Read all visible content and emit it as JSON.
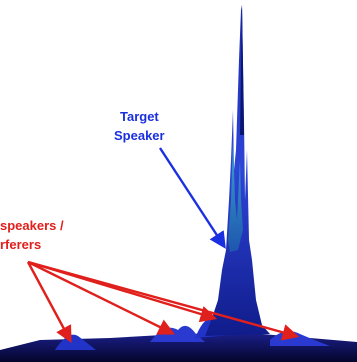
{
  "chart_data": {
    "type": "surface-3d",
    "annotations": {
      "target": {
        "lines": [
          "Target",
          "Speaker"
        ],
        "color": "#1a2fe0"
      },
      "interferers": {
        "lines": [
          "speakers /",
          "rferers"
        ],
        "color": "#e0201c"
      }
    },
    "colors": {
      "peak_main": "#0c1b8f",
      "peak_mid": "#2a3ad0",
      "peak_highlight": "#3cc0c4",
      "floor": "#06073a",
      "arrow_blue": "#1a2fe0",
      "arrow_red": "#e0201c"
    }
  }
}
